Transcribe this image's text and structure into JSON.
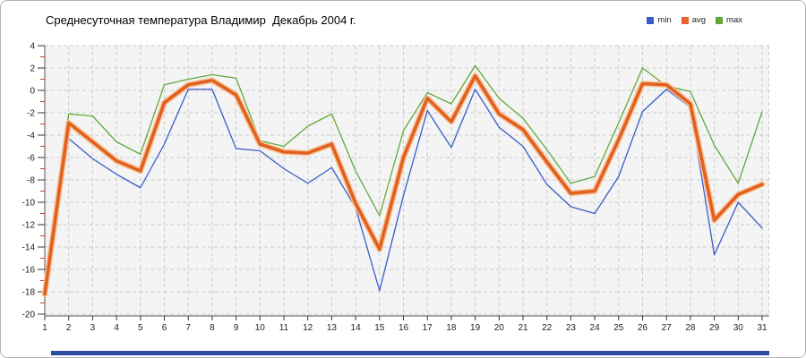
{
  "title": "Среднесуточная температура Владимир  Декабрь 2004 г.",
  "legend": [
    {
      "label": "min",
      "color": "#3a5cc8"
    },
    {
      "label": "avg",
      "color": "#e8642a"
    },
    {
      "label": "max",
      "color": "#5eaa34"
    }
  ],
  "chart_data": {
    "type": "line",
    "title": "Среднесуточная температура Владимир  Декабрь 2004 г.",
    "xlabel": "",
    "ylabel": "",
    "x": [
      1,
      2,
      3,
      4,
      5,
      6,
      7,
      8,
      9,
      10,
      11,
      12,
      13,
      14,
      15,
      16,
      17,
      18,
      19,
      20,
      21,
      22,
      23,
      24,
      25,
      26,
      27,
      28,
      29,
      30,
      31
    ],
    "x_tick_labels": [
      "1",
      "2",
      "3",
      "4",
      "5",
      "6",
      "7",
      "8",
      "9",
      "10",
      "11",
      "12",
      "13",
      "14",
      "15",
      "16",
      "17",
      "18",
      "19",
      "20",
      "21",
      "22",
      "23",
      "24",
      "25",
      "26",
      "27",
      "28",
      "29",
      "30",
      "31"
    ],
    "series": [
      {
        "name": "min",
        "color": "#3a5cc8",
        "width": 1.3,
        "values": [
          -18.4,
          -4.3,
          -6.1,
          -7.5,
          -8.7,
          -4.8,
          0.1,
          0.1,
          -5.2,
          -5.4,
          -7.0,
          -8.3,
          -6.9,
          -10.5,
          -17.9,
          -9.4,
          -1.8,
          -5.1,
          0.1,
          -3.3,
          -5.0,
          -8.4,
          -10.4,
          -11.0,
          -7.7,
          -1.9,
          0.1,
          -1.5,
          -14.7,
          -10.0,
          -12.3
        ]
      },
      {
        "name": "avg",
        "color": "#e2601f",
        "halo": "#f7c399",
        "width": 3.6,
        "halo_width": 6.6,
        "values": [
          -18.2,
          -2.9,
          -4.6,
          -6.3,
          -7.2,
          -1.1,
          0.5,
          0.9,
          -0.4,
          -4.8,
          -5.5,
          -5.6,
          -4.8,
          -10.1,
          -14.2,
          -6.0,
          -0.7,
          -2.8,
          1.3,
          -2.1,
          -3.5,
          -6.4,
          -9.2,
          -9.0,
          -4.4,
          0.6,
          0.5,
          -1.2,
          -11.6,
          -9.3,
          -8.4
        ]
      },
      {
        "name": "max",
        "color": "#63a93c",
        "width": 1.3,
        "values": [
          -18.0,
          -2.1,
          -2.3,
          -4.6,
          -5.7,
          0.5,
          1.0,
          1.4,
          1.1,
          -4.5,
          -5.0,
          -3.2,
          -2.1,
          -7.2,
          -11.2,
          -3.6,
          -0.2,
          -1.2,
          2.2,
          -0.7,
          -2.5,
          -5.3,
          -8.3,
          -7.7,
          -2.9,
          2.0,
          0.4,
          -0.1,
          -4.9,
          -8.3,
          -1.9
        ]
      }
    ],
    "ylim": [
      -20,
      4
    ],
    "y_major_ticks": [
      4,
      2,
      0,
      -2,
      -4,
      -6,
      -8,
      -10,
      -12,
      -14,
      -16,
      -18,
      -20
    ],
    "y_minor_ticks": [
      3,
      1,
      -1,
      -3,
      -5,
      -7,
      -9,
      -11,
      -13,
      -15,
      -17,
      -19
    ],
    "grid": true,
    "grid_style": "dashed",
    "legend_position": "top-right",
    "colors": {
      "panel_bg": "#f4f4f4",
      "grid": "#cccccc",
      "axis": "#555555",
      "tick_label": "#222222",
      "minor_tick": "#cc4125",
      "bottom_bar": "#2b4ba0"
    }
  }
}
